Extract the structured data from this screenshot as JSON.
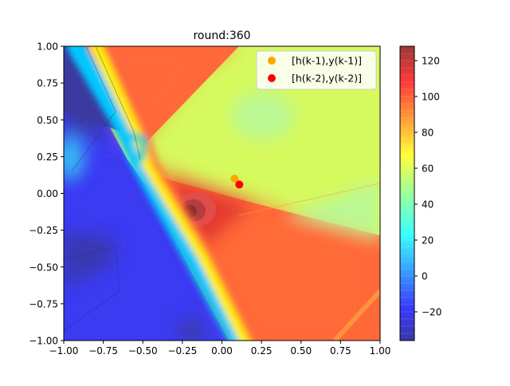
{
  "chart_data": {
    "type": "heatmap",
    "title": "round:360",
    "xlabel": "",
    "ylabel": "",
    "xlim": [
      -1.0,
      1.0
    ],
    "ylim": [
      -1.0,
      1.0
    ],
    "x_ticks": [
      "−1.00",
      "−0.75",
      "−0.50",
      "−0.25",
      "0.00",
      "0.25",
      "0.50",
      "0.75",
      "1.00"
    ],
    "y_ticks": [
      "1.00",
      "0.75",
      "0.50",
      "0.25",
      "0.00",
      "−0.25",
      "−0.50",
      "−0.75",
      "−1.00"
    ],
    "colorbar": {
      "colormap": "jet",
      "range": [
        -36,
        128
      ],
      "ticks": [
        120,
        100,
        80,
        60,
        40,
        20,
        0,
        -20
      ],
      "tick_labels": [
        "120",
        "100",
        "80",
        "60",
        "40",
        "20",
        "0",
        "−20"
      ]
    },
    "series": [
      {
        "name": "[h(k-1),y(k-1)]",
        "color": "#ffa500",
        "points": [
          [
            0.08,
            0.1
          ]
        ]
      },
      {
        "name": "[h(k-2),y(k-2)]",
        "color": "#ff0000",
        "points": [
          [
            0.11,
            0.06
          ]
        ]
      }
    ],
    "legend_position": "top-right",
    "grid": false
  }
}
